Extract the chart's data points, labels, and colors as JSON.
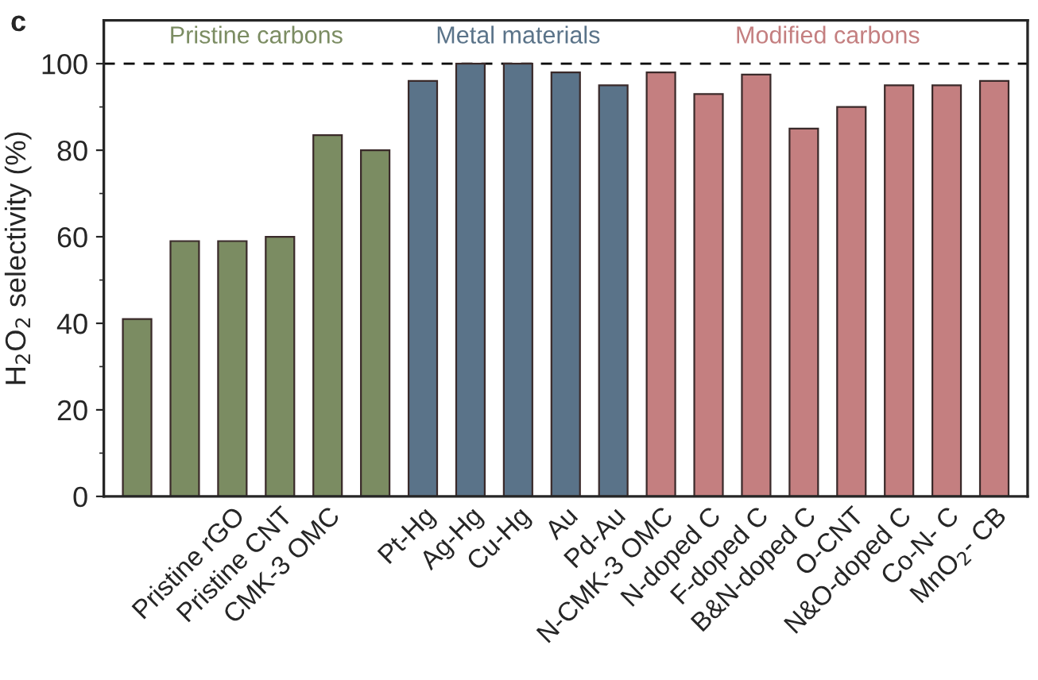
{
  "chart_data": {
    "type": "bar",
    "categories": [
      null,
      null,
      "Pristine rGO",
      "Pristine CNT",
      "CMK-3 OMC",
      null,
      "Pt-Hg",
      "Ag-Hg",
      "Cu-Hg",
      "Au",
      "Pd-Au",
      "N-CMK-3 OMC",
      "N-doped C",
      "F-doped C",
      "B&N-doped C",
      "O-CNT",
      "N&O-doped C",
      "Co-N- C",
      "MnO$_{2}$- CB"
    ],
    "series": [
      {
        "name": "Pristine carbons",
        "color": "#7b8c62",
        "values": [
          41,
          59,
          59,
          60,
          83.5,
          80,
          null,
          null,
          null,
          null,
          null,
          null,
          null,
          null,
          null,
          null,
          null,
          null,
          null
        ]
      },
      {
        "name": "Metal materials",
        "color": "#5a7389",
        "values": [
          null,
          null,
          null,
          null,
          null,
          null,
          96,
          100,
          100,
          98,
          95,
          null,
          null,
          null,
          null,
          null,
          null,
          null,
          null
        ]
      },
      {
        "name": "Modified carbons",
        "color": "#c47f80",
        "values": [
          null,
          null,
          null,
          null,
          null,
          null,
          null,
          null,
          null,
          null,
          null,
          98,
          93,
          97.5,
          85,
          90,
          95,
          95,
          96
        ]
      }
    ],
    "ylabel": "H$_{2}$O$_{2}$ selectivity (%)",
    "annotations": [
      "c"
    ],
    "ylim": [
      0,
      110
    ],
    "yticks": [
      0,
      20,
      40,
      60,
      80,
      100
    ],
    "ref_lines": [
      {
        "axis": "y",
        "value": 100,
        "label": null,
        "color": "#000000",
        "line_style": "dashed"
      }
    ],
    "grid": false,
    "legend": false
  }
}
